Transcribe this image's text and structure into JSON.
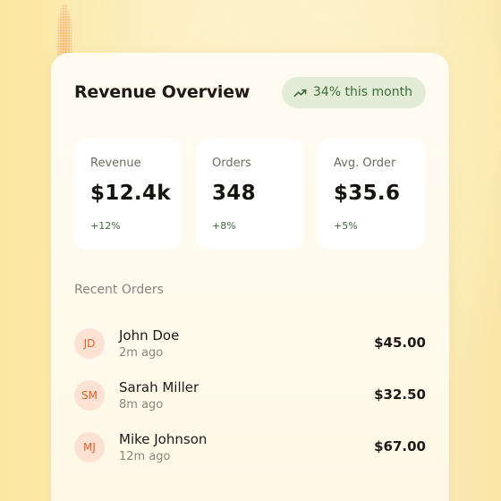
{
  "card": {
    "title": "Revenue Overview",
    "trend": {
      "icon": "trending-up-icon",
      "label": "34% this month"
    }
  },
  "stats": [
    {
      "label": "Revenue",
      "value": "$12.4k",
      "delta": "+12%"
    },
    {
      "label": "Orders",
      "value": "348",
      "delta": "+8%"
    },
    {
      "label": "Avg. Order",
      "value": "$35.6",
      "delta": "+5%"
    }
  ],
  "recent": {
    "title": "Recent Orders",
    "orders": [
      {
        "initials": "JD",
        "name": "John Doe",
        "time": "2m ago",
        "amount": "$45.00"
      },
      {
        "initials": "SM",
        "name": "Sarah Miller",
        "time": "8m ago",
        "amount": "$32.50"
      },
      {
        "initials": "MJ",
        "name": "Mike Johnson",
        "time": "12m ago",
        "amount": "$67.00"
      }
    ]
  },
  "colors": {
    "accent_green": "#3f6b3a",
    "pill_bg": "#e2ecd6",
    "avatar_bg": "#fde2d3",
    "avatar_text": "#e0612c"
  }
}
